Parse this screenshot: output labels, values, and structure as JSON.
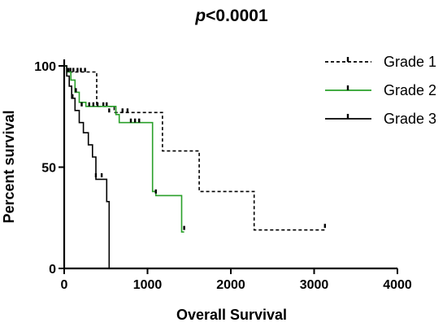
{
  "chart_data": {
    "type": "line",
    "title_prefix": "p",
    "title_rest": "<0.0001",
    "xlabel": "Overall Survival",
    "ylabel": "Percent survival",
    "xlim": [
      0,
      4000
    ],
    "ylim": [
      0,
      100
    ],
    "x_ticks": [
      0,
      1000,
      2000,
      3000,
      4000
    ],
    "y_ticks": [
      0,
      50,
      100
    ],
    "legend_position": "top-right",
    "series": [
      {
        "name": "Grade 1",
        "color": "#000000",
        "style": "dashed",
        "steps": [
          [
            0,
            100
          ],
          [
            40,
            97
          ],
          [
            90,
            97
          ],
          [
            300,
            97
          ],
          [
            390,
            80
          ],
          [
            600,
            77
          ],
          [
            1180,
            77
          ],
          [
            1180,
            58
          ],
          [
            1620,
            58
          ],
          [
            1620,
            38
          ],
          [
            2280,
            38
          ],
          [
            2280,
            19
          ],
          [
            3130,
            19
          ]
        ],
        "censored": [
          [
            75,
            97
          ],
          [
            110,
            97
          ],
          [
            160,
            97
          ],
          [
            200,
            97
          ],
          [
            250,
            97
          ],
          [
            470,
            80
          ],
          [
            510,
            80
          ],
          [
            540,
            77
          ],
          [
            700,
            77
          ],
          [
            760,
            77
          ],
          [
            3130,
            20
          ]
        ]
      },
      {
        "name": "Grade 2",
        "color": "#2aa02a",
        "style": "solid",
        "steps": [
          [
            0,
            100
          ],
          [
            30,
            97
          ],
          [
            80,
            93
          ],
          [
            130,
            87
          ],
          [
            180,
            82
          ],
          [
            260,
            80
          ],
          [
            500,
            80
          ],
          [
            620,
            76
          ],
          [
            660,
            72
          ],
          [
            1020,
            72
          ],
          [
            1060,
            38
          ],
          [
            1100,
            36
          ],
          [
            1410,
            36
          ],
          [
            1410,
            18
          ],
          [
            1440,
            18
          ]
        ],
        "censored": [
          [
            50,
            97
          ],
          [
            140,
            87
          ],
          [
            210,
            80
          ],
          [
            300,
            80
          ],
          [
            350,
            80
          ],
          [
            400,
            80
          ],
          [
            800,
            72
          ],
          [
            850,
            72
          ],
          [
            900,
            72
          ],
          [
            1100,
            37
          ],
          [
            1440,
            19
          ]
        ]
      },
      {
        "name": "Grade 3",
        "color": "#000000",
        "style": "solid",
        "steps": [
          [
            0,
            100
          ],
          [
            30,
            95
          ],
          [
            60,
            90
          ],
          [
            90,
            84
          ],
          [
            130,
            78
          ],
          [
            180,
            72
          ],
          [
            230,
            67
          ],
          [
            290,
            61
          ],
          [
            340,
            55
          ],
          [
            380,
            44
          ],
          [
            450,
            44
          ],
          [
            510,
            33
          ],
          [
            540,
            0
          ]
        ],
        "censored": [
          [
            100,
            84
          ],
          [
            380,
            45
          ],
          [
            450,
            45
          ]
        ]
      }
    ]
  }
}
